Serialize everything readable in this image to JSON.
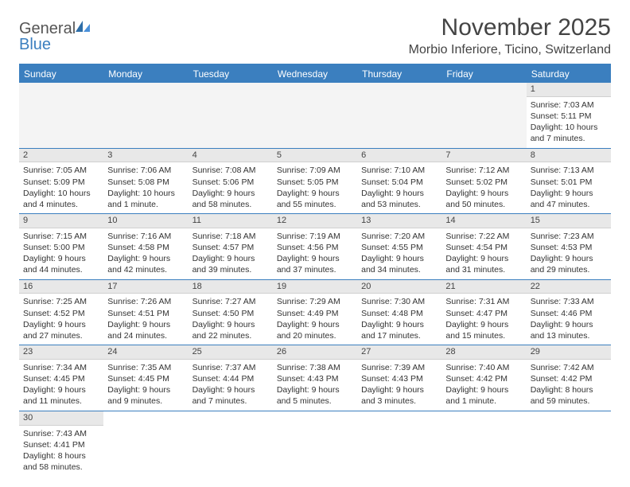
{
  "brand": {
    "name1": "General",
    "name2": "Blue"
  },
  "title": "November 2025",
  "location": "Morbio Inferiore, Ticino, Switzerland",
  "colors": {
    "accent": "#3b7fbf",
    "header_text": "#444444",
    "body_text": "#333333",
    "daybar_bg": "#e8e8e8",
    "background": "#ffffff"
  },
  "days_of_week": [
    "Sunday",
    "Monday",
    "Tuesday",
    "Wednesday",
    "Thursday",
    "Friday",
    "Saturday"
  ],
  "weeks": [
    [
      null,
      null,
      null,
      null,
      null,
      null,
      {
        "n": "1",
        "sunrise": "Sunrise: 7:03 AM",
        "sunset": "Sunset: 5:11 PM",
        "daylight": "Daylight: 10 hours and 7 minutes."
      }
    ],
    [
      {
        "n": "2",
        "sunrise": "Sunrise: 7:05 AM",
        "sunset": "Sunset: 5:09 PM",
        "daylight": "Daylight: 10 hours and 4 minutes."
      },
      {
        "n": "3",
        "sunrise": "Sunrise: 7:06 AM",
        "sunset": "Sunset: 5:08 PM",
        "daylight": "Daylight: 10 hours and 1 minute."
      },
      {
        "n": "4",
        "sunrise": "Sunrise: 7:08 AM",
        "sunset": "Sunset: 5:06 PM",
        "daylight": "Daylight: 9 hours and 58 minutes."
      },
      {
        "n": "5",
        "sunrise": "Sunrise: 7:09 AM",
        "sunset": "Sunset: 5:05 PM",
        "daylight": "Daylight: 9 hours and 55 minutes."
      },
      {
        "n": "6",
        "sunrise": "Sunrise: 7:10 AM",
        "sunset": "Sunset: 5:04 PM",
        "daylight": "Daylight: 9 hours and 53 minutes."
      },
      {
        "n": "7",
        "sunrise": "Sunrise: 7:12 AM",
        "sunset": "Sunset: 5:02 PM",
        "daylight": "Daylight: 9 hours and 50 minutes."
      },
      {
        "n": "8",
        "sunrise": "Sunrise: 7:13 AM",
        "sunset": "Sunset: 5:01 PM",
        "daylight": "Daylight: 9 hours and 47 minutes."
      }
    ],
    [
      {
        "n": "9",
        "sunrise": "Sunrise: 7:15 AM",
        "sunset": "Sunset: 5:00 PM",
        "daylight": "Daylight: 9 hours and 44 minutes."
      },
      {
        "n": "10",
        "sunrise": "Sunrise: 7:16 AM",
        "sunset": "Sunset: 4:58 PM",
        "daylight": "Daylight: 9 hours and 42 minutes."
      },
      {
        "n": "11",
        "sunrise": "Sunrise: 7:18 AM",
        "sunset": "Sunset: 4:57 PM",
        "daylight": "Daylight: 9 hours and 39 minutes."
      },
      {
        "n": "12",
        "sunrise": "Sunrise: 7:19 AM",
        "sunset": "Sunset: 4:56 PM",
        "daylight": "Daylight: 9 hours and 37 minutes."
      },
      {
        "n": "13",
        "sunrise": "Sunrise: 7:20 AM",
        "sunset": "Sunset: 4:55 PM",
        "daylight": "Daylight: 9 hours and 34 minutes."
      },
      {
        "n": "14",
        "sunrise": "Sunrise: 7:22 AM",
        "sunset": "Sunset: 4:54 PM",
        "daylight": "Daylight: 9 hours and 31 minutes."
      },
      {
        "n": "15",
        "sunrise": "Sunrise: 7:23 AM",
        "sunset": "Sunset: 4:53 PM",
        "daylight": "Daylight: 9 hours and 29 minutes."
      }
    ],
    [
      {
        "n": "16",
        "sunrise": "Sunrise: 7:25 AM",
        "sunset": "Sunset: 4:52 PM",
        "daylight": "Daylight: 9 hours and 27 minutes."
      },
      {
        "n": "17",
        "sunrise": "Sunrise: 7:26 AM",
        "sunset": "Sunset: 4:51 PM",
        "daylight": "Daylight: 9 hours and 24 minutes."
      },
      {
        "n": "18",
        "sunrise": "Sunrise: 7:27 AM",
        "sunset": "Sunset: 4:50 PM",
        "daylight": "Daylight: 9 hours and 22 minutes."
      },
      {
        "n": "19",
        "sunrise": "Sunrise: 7:29 AM",
        "sunset": "Sunset: 4:49 PM",
        "daylight": "Daylight: 9 hours and 20 minutes."
      },
      {
        "n": "20",
        "sunrise": "Sunrise: 7:30 AM",
        "sunset": "Sunset: 4:48 PM",
        "daylight": "Daylight: 9 hours and 17 minutes."
      },
      {
        "n": "21",
        "sunrise": "Sunrise: 7:31 AM",
        "sunset": "Sunset: 4:47 PM",
        "daylight": "Daylight: 9 hours and 15 minutes."
      },
      {
        "n": "22",
        "sunrise": "Sunrise: 7:33 AM",
        "sunset": "Sunset: 4:46 PM",
        "daylight": "Daylight: 9 hours and 13 minutes."
      }
    ],
    [
      {
        "n": "23",
        "sunrise": "Sunrise: 7:34 AM",
        "sunset": "Sunset: 4:45 PM",
        "daylight": "Daylight: 9 hours and 11 minutes."
      },
      {
        "n": "24",
        "sunrise": "Sunrise: 7:35 AM",
        "sunset": "Sunset: 4:45 PM",
        "daylight": "Daylight: 9 hours and 9 minutes."
      },
      {
        "n": "25",
        "sunrise": "Sunrise: 7:37 AM",
        "sunset": "Sunset: 4:44 PM",
        "daylight": "Daylight: 9 hours and 7 minutes."
      },
      {
        "n": "26",
        "sunrise": "Sunrise: 7:38 AM",
        "sunset": "Sunset: 4:43 PM",
        "daylight": "Daylight: 9 hours and 5 minutes."
      },
      {
        "n": "27",
        "sunrise": "Sunrise: 7:39 AM",
        "sunset": "Sunset: 4:43 PM",
        "daylight": "Daylight: 9 hours and 3 minutes."
      },
      {
        "n": "28",
        "sunrise": "Sunrise: 7:40 AM",
        "sunset": "Sunset: 4:42 PM",
        "daylight": "Daylight: 9 hours and 1 minute."
      },
      {
        "n": "29",
        "sunrise": "Sunrise: 7:42 AM",
        "sunset": "Sunset: 4:42 PM",
        "daylight": "Daylight: 8 hours and 59 minutes."
      }
    ],
    [
      {
        "n": "30",
        "sunrise": "Sunrise: 7:43 AM",
        "sunset": "Sunset: 4:41 PM",
        "daylight": "Daylight: 8 hours and 58 minutes."
      },
      null,
      null,
      null,
      null,
      null,
      null
    ]
  ]
}
